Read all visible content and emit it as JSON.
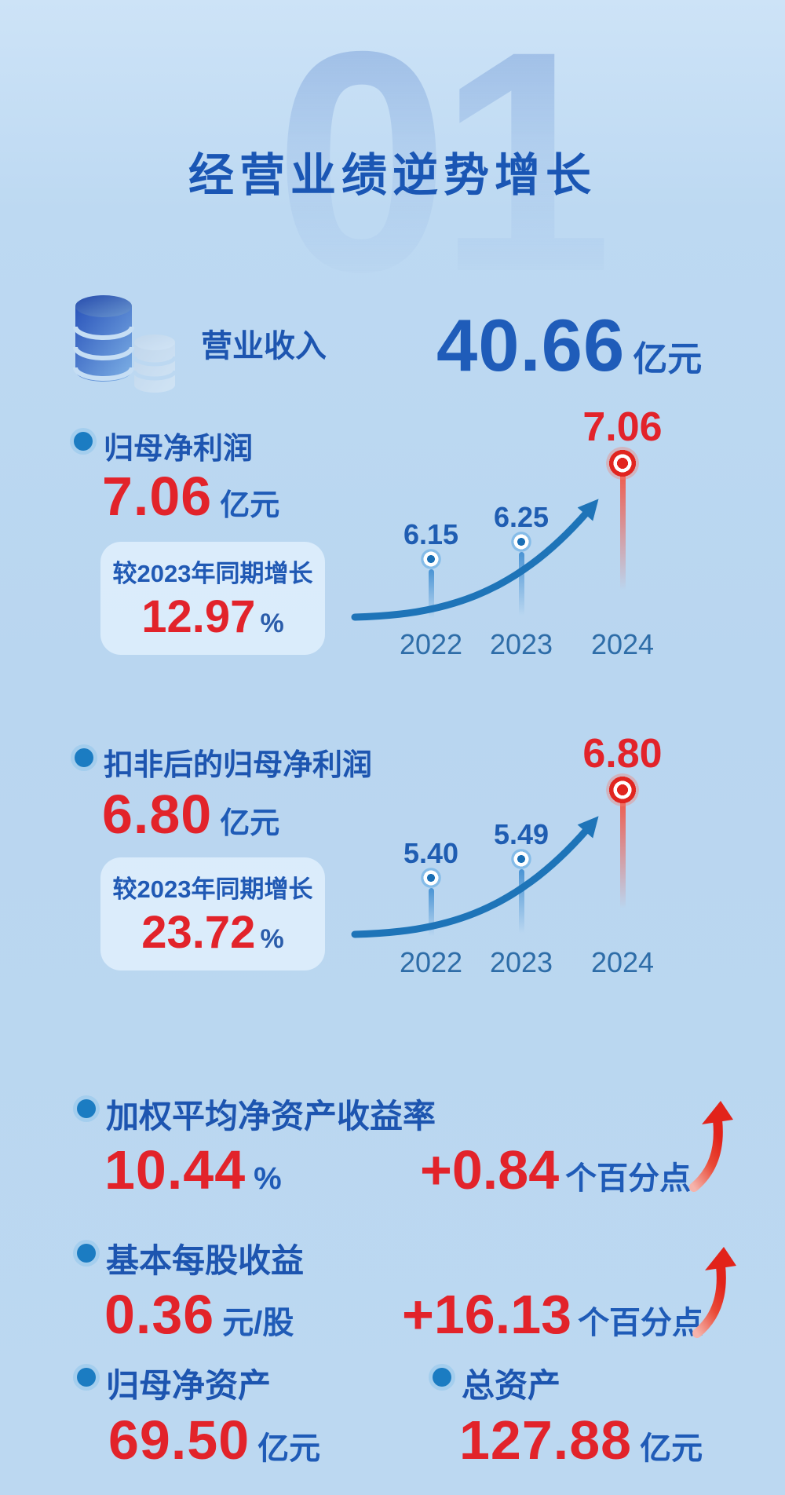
{
  "page": {
    "watermark": "01",
    "title": "经营业绩逆势增长"
  },
  "revenue": {
    "icon": "database-icon",
    "label": "营业收入",
    "value": "40.66",
    "unit": "亿元"
  },
  "sections": [
    {
      "label": "归母净利润",
      "value": "7.06",
      "unit": "亿元",
      "growth_caption": "较2023年同期增长",
      "growth_value": "12.97",
      "growth_unit": "%"
    },
    {
      "label": "扣非后的归母净利润",
      "value": "6.80",
      "unit": "亿元",
      "growth_caption": "较2023年同期增长",
      "growth_value": "23.72",
      "growth_unit": "%"
    }
  ],
  "metrics": [
    {
      "label": "加权平均净资产收益率",
      "value": "10.44",
      "unit": "%",
      "delta_value": "+0.84",
      "delta_unit": "个百分点",
      "delta_icon": "up-arrow-icon"
    },
    {
      "label": "基本每股收益",
      "value": "0.36",
      "unit": "元/股",
      "delta_value": "+16.13",
      "delta_unit": "个百分点",
      "delta_icon": "up-arrow-icon"
    }
  ],
  "footer_stats": [
    {
      "label": "归母净资产",
      "value": "69.50",
      "unit": "亿元"
    },
    {
      "label": "总资产",
      "value": "127.88",
      "unit": "亿元"
    }
  ],
  "chart_data": [
    {
      "type": "line",
      "title": "归母净利润",
      "unit": "亿元",
      "categories": [
        "2022",
        "2023",
        "2024"
      ],
      "values": [
        6.15,
        6.25,
        7.06
      ],
      "point_labels": [
        "6.15",
        "6.25",
        "7.06"
      ],
      "highlight_category": "2024",
      "grid": false,
      "legend": false
    },
    {
      "type": "line",
      "title": "扣非后的归母净利润",
      "unit": "亿元",
      "categories": [
        "2022",
        "2023",
        "2024"
      ],
      "values": [
        5.4,
        5.49,
        6.8
      ],
      "point_labels": [
        "5.40",
        "5.49",
        "6.80"
      ],
      "highlight_category": "2024",
      "grid": false,
      "legend": false
    }
  ],
  "colors": {
    "background": "#bcd9f2",
    "title_blue": "#1a56b4",
    "label_blue": "#1d55b0",
    "number_red": "#e2232a",
    "unit_blue": "#1f5bb7",
    "year_blue": "#2e6da8",
    "chart_blue": "#1e74b8",
    "chart_red": "#e1251f",
    "card_bg": "#e3f0fb"
  }
}
